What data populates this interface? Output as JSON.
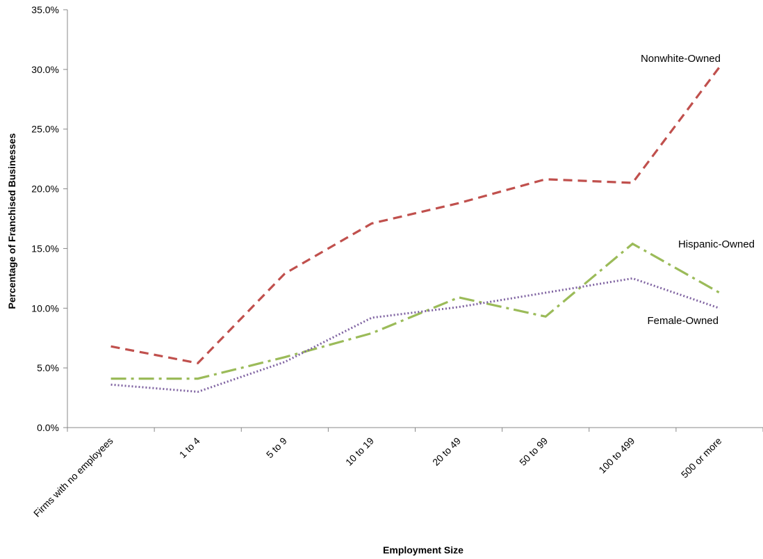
{
  "chart_data": {
    "type": "line",
    "title": "",
    "xlabel": "Employment Size",
    "ylabel": "Percentage of Franchised Businesses",
    "ylim": [
      0,
      35
    ],
    "yticks": [
      "0.0%",
      "5.0%",
      "10.0%",
      "15.0%",
      "20.0%",
      "25.0%",
      "30.0%",
      "35.0%"
    ],
    "grid": false,
    "legend": "inline labels",
    "categories": [
      "Firms with no employees",
      "1 to 4",
      "5 to 9",
      "10 to 19",
      "20 to 49",
      "50 to 99",
      "100 to 499",
      "500 or more"
    ],
    "series": [
      {
        "name": "Nonwhite-Owned",
        "color": "#c0504d",
        "dash": "dashed",
        "values": [
          6.8,
          5.4,
          12.9,
          17.1,
          18.8,
          20.8,
          20.5,
          30.2
        ]
      },
      {
        "name": "Hispanic-Owned",
        "color": "#9bbb59",
        "dash": "dash-dot",
        "values": [
          4.1,
          4.1,
          5.9,
          7.9,
          10.9,
          9.3,
          15.4,
          11.3
        ]
      },
      {
        "name": "Female-Owned",
        "color": "#8064a2",
        "dash": "dotted",
        "values": [
          3.6,
          3.0,
          5.5,
          9.2,
          10.1,
          11.3,
          12.5,
          10.0
        ]
      }
    ]
  }
}
